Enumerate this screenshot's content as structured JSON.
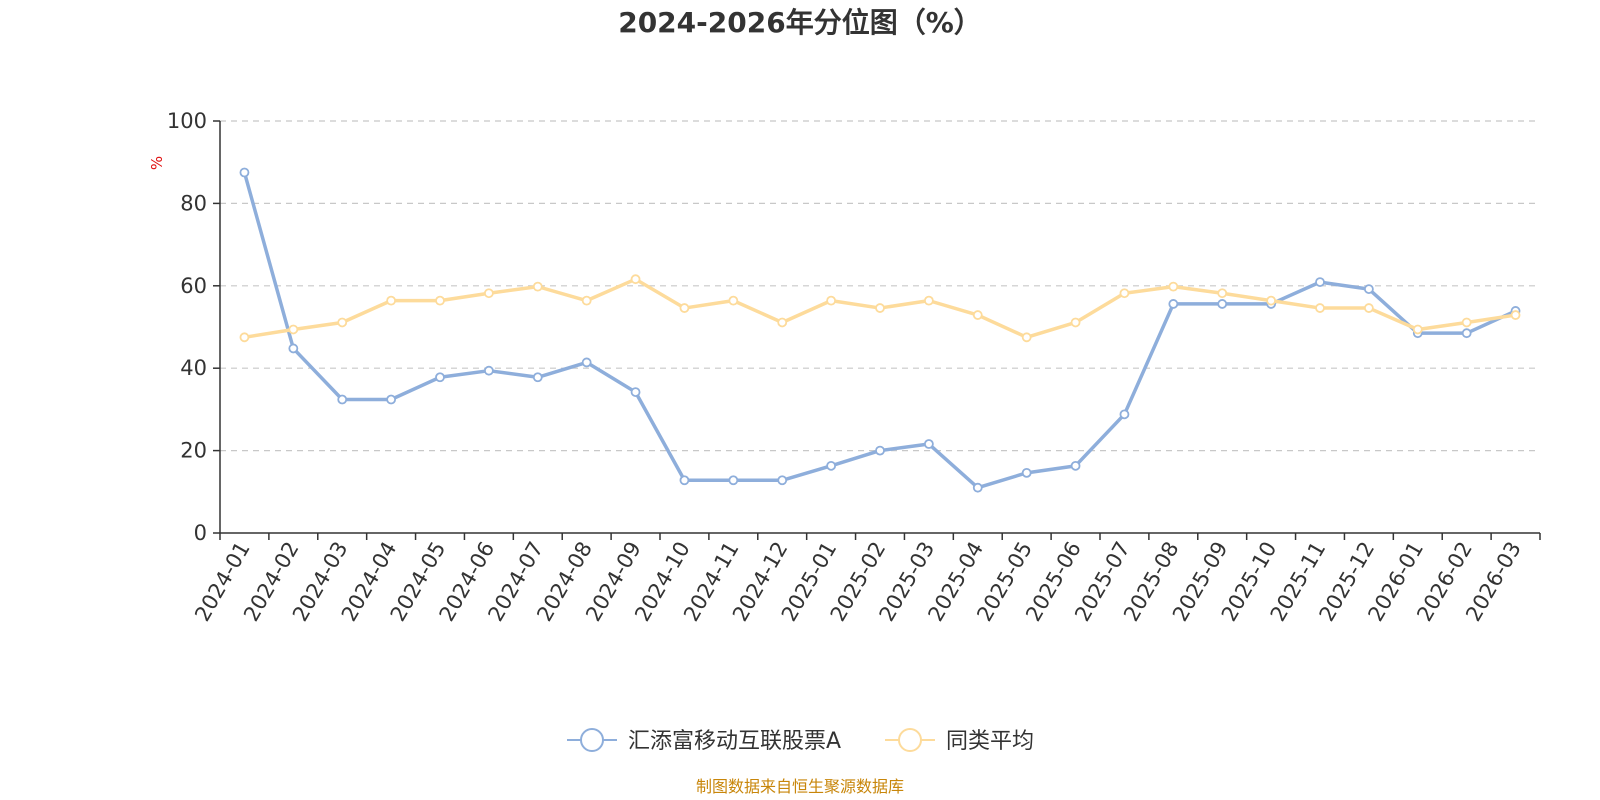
{
  "colors": {
    "series_a": "#8eaedb",
    "series_b": "#fddb9b",
    "axis": "#333333",
    "grid": "#c8c8c8",
    "unit": "#e01010",
    "source": "#c8860a"
  },
  "chart_data": {
    "type": "line",
    "title": "2024-2026年分位图（%）",
    "y_unit": "%",
    "ylim": [
      0,
      100
    ],
    "y_ticks": [
      "0",
      "20",
      "40",
      "60",
      "80",
      "100"
    ],
    "grid": "horizontal-dashed",
    "legend_position": "bottom-center",
    "categories": [
      "2024-01",
      "2024-02",
      "2024-03",
      "2024-04",
      "2024-05",
      "2024-06",
      "2024-07",
      "2024-08",
      "2024-09",
      "2024-10",
      "2024-11",
      "2024-12",
      "2025-01",
      "2025-02",
      "2025-03",
      "2025-04",
      "2025-05",
      "2025-06",
      "2025-07",
      "2025-08",
      "2025-09",
      "2025-10",
      "2025-11",
      "2025-12",
      "2026-01",
      "2026-02",
      "2026-03"
    ],
    "series": [
      {
        "name": "汇添富移动互联股票A",
        "values": [
          87.5,
          44.8,
          32.4,
          32.4,
          37.8,
          39.4,
          37.8,
          41.4,
          34.2,
          12.8,
          12.8,
          12.8,
          16.3,
          20.0,
          21.6,
          11.0,
          14.6,
          16.3,
          28.8,
          55.6,
          55.6,
          55.6,
          60.9,
          59.2,
          48.5,
          48.5,
          53.9
        ]
      },
      {
        "name": "同类平均",
        "values": [
          47.5,
          49.4,
          51.1,
          56.4,
          56.4,
          58.2,
          59.8,
          56.4,
          61.6,
          54.6,
          56.4,
          51.1,
          56.4,
          54.6,
          56.4,
          52.9,
          47.5,
          51.1,
          58.2,
          59.8,
          58.2,
          56.4,
          54.6,
          54.6,
          49.4,
          51.1,
          52.9
        ]
      }
    ]
  },
  "source_note": "制图数据来自恒生聚源数据库"
}
